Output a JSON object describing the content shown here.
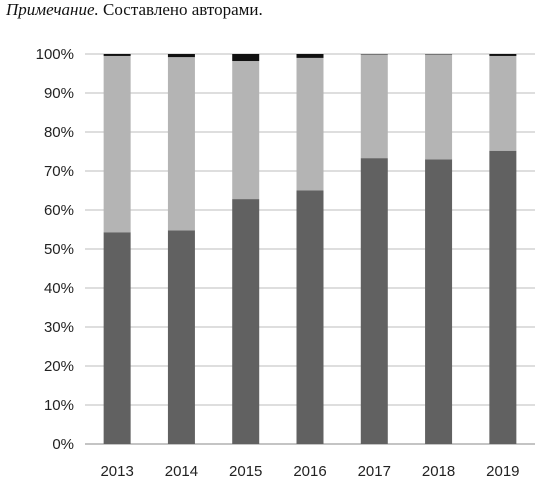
{
  "note": {
    "label": "Примечание.",
    "text": "Составлено авторами."
  },
  "chart_data": {
    "type": "bar",
    "stacked": true,
    "title": "",
    "xlabel": "",
    "ylabel": "",
    "ylim": [
      0,
      100
    ],
    "yticks": [
      "0%",
      "10%",
      "20%",
      "30%",
      "40%",
      "50%",
      "60%",
      "70%",
      "80%",
      "90%",
      "100%"
    ],
    "grid": true,
    "legend": "none",
    "categories": [
      "2013",
      "2014",
      "2015",
      "2016",
      "2017",
      "2018",
      "2019"
    ],
    "series": [
      {
        "color": "#616161",
        "values": [
          54.3,
          54.8,
          62.8,
          65.0,
          73.3,
          73.0,
          75.2
        ]
      },
      {
        "color": "#b4b4b4",
        "values": [
          45.2,
          44.4,
          35.4,
          34.0,
          26.6,
          26.9,
          24.3
        ]
      },
      {
        "color": "#111111",
        "values": [
          0.5,
          0.8,
          1.8,
          1.0,
          0.1,
          0.1,
          0.5
        ]
      }
    ]
  }
}
